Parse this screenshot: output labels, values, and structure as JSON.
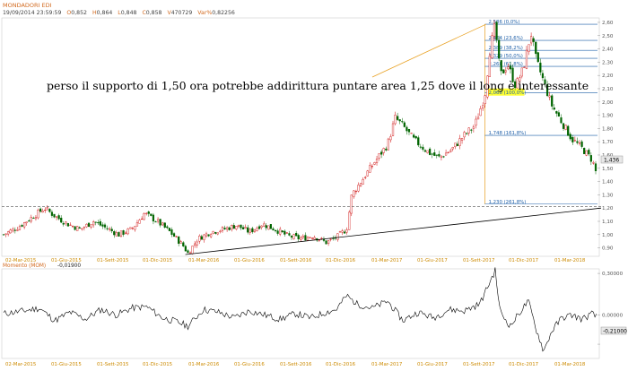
{
  "header": {
    "title": "MONDADORI EDI",
    "datetime": "19/09/2014  23:59:59",
    "open": "0,852",
    "high": "0,864",
    "low": "0,848",
    "close": "0,858",
    "volume": "470729",
    "var_pct": "0,82256"
  },
  "annotation": "perso il supporto di 1,50 ora potrebbe addirittura puntare area 1,25 dove il long è interessante",
  "last_price_label": "1,436",
  "momentum": {
    "title": "Momento (MOM)",
    "value": "-0,01900",
    "last_label": "-0,21000"
  },
  "chart_data": [
    {
      "type": "candlestick",
      "title": "MONDADORI EDI",
      "x_tick_labels": [
        "02-Mar-2015",
        "01-Giu-2015",
        "01-Sett-2015",
        "01-Dic-2015",
        "01-Mar-2016",
        "01-Giu-2016",
        "01-Sett-2016",
        "01-Dic-2016",
        "01-Mar-2017",
        "01-Giu-2017",
        "01-Sett-2017",
        "01-Dic-2017",
        "01-Mar-2018"
      ],
      "y_ticks": [
        0.9,
        1.0,
        1.1,
        1.2,
        1.3,
        1.4,
        1.5,
        1.6,
        1.7,
        1.8,
        1.9,
        2.0,
        2.1,
        2.2,
        2.3,
        2.4,
        2.5,
        2.6
      ],
      "y_tick_labels": [
        "0,90",
        "1,00",
        "1,10",
        "1,20",
        "1,30",
        "1,40",
        "1,50",
        "1,60",
        "1,70",
        "1,80",
        "1,90",
        "2,00",
        "2,10",
        "2,20",
        "2,30",
        "2,40",
        "2,50",
        "2,60"
      ],
      "ylim": [
        0.85,
        2.62
      ],
      "close_path": [
        {
          "x": 0,
          "y": 1.0
        },
        {
          "x": 6,
          "y": 1.06
        },
        {
          "x": 11,
          "y": 1.13
        },
        {
          "x": 16,
          "y": 1.2
        },
        {
          "x": 20,
          "y": 1.14
        },
        {
          "x": 25,
          "y": 1.08
        },
        {
          "x": 30,
          "y": 1.04
        },
        {
          "x": 35,
          "y": 1.1
        },
        {
          "x": 40,
          "y": 1.05
        },
        {
          "x": 45,
          "y": 1.0
        },
        {
          "x": 50,
          "y": 1.04
        },
        {
          "x": 55,
          "y": 1.16
        },
        {
          "x": 60,
          "y": 1.1
        },
        {
          "x": 65,
          "y": 1.02
        },
        {
          "x": 70,
          "y": 0.92
        },
        {
          "x": 72,
          "y": 0.86
        },
        {
          "x": 76,
          "y": 0.97
        },
        {
          "x": 81,
          "y": 1.02
        },
        {
          "x": 86,
          "y": 1.04
        },
        {
          "x": 91,
          "y": 1.07
        },
        {
          "x": 96,
          "y": 1.02
        },
        {
          "x": 101,
          "y": 1.08
        },
        {
          "x": 106,
          "y": 1.04
        },
        {
          "x": 111,
          "y": 0.99
        },
        {
          "x": 116,
          "y": 0.97
        },
        {
          "x": 121,
          "y": 0.99
        },
        {
          "x": 126,
          "y": 0.94
        },
        {
          "x": 130,
          "y": 0.98
        },
        {
          "x": 134,
          "y": 1.04
        },
        {
          "x": 136,
          "y": 1.3
        },
        {
          "x": 140,
          "y": 1.41
        },
        {
          "x": 145,
          "y": 1.55
        },
        {
          "x": 150,
          "y": 1.68
        },
        {
          "x": 153,
          "y": 1.88
        },
        {
          "x": 156,
          "y": 1.82
        },
        {
          "x": 160,
          "y": 1.72
        },
        {
          "x": 166,
          "y": 1.62
        },
        {
          "x": 170,
          "y": 1.58
        },
        {
          "x": 175,
          "y": 1.64
        },
        {
          "x": 180,
          "y": 1.75
        },
        {
          "x": 184,
          "y": 1.82
        },
        {
          "x": 188,
          "y": 2.05
        },
        {
          "x": 190,
          "y": 2.4
        },
        {
          "x": 192,
          "y": 2.58
        },
        {
          "x": 194,
          "y": 2.2
        },
        {
          "x": 197,
          "y": 2.28
        },
        {
          "x": 200,
          "y": 2.12
        },
        {
          "x": 203,
          "y": 2.25
        },
        {
          "x": 206,
          "y": 2.52
        },
        {
          "x": 208,
          "y": 2.32
        },
        {
          "x": 211,
          "y": 2.15
        },
        {
          "x": 214,
          "y": 1.98
        },
        {
          "x": 218,
          "y": 1.85
        },
        {
          "x": 222,
          "y": 1.72
        },
        {
          "x": 226,
          "y": 1.65
        },
        {
          "x": 230,
          "y": 1.56
        },
        {
          "x": 232,
          "y": 1.43
        }
      ],
      "x_max": 232,
      "fibonacci": [
        {
          "level": 2.586,
          "label": "2,586 (0,0%)"
        },
        {
          "level": 2.464,
          "label": "2,464 (23,6%)"
        },
        {
          "level": 2.389,
          "label": "2,389 (38,2%)"
        },
        {
          "level": 2.329,
          "label": "2,329 (50,0%)"
        },
        {
          "level": 2.268,
          "label": "2,268 (61,8%)"
        },
        {
          "level": 2.068,
          "label": "2,068 (100,0%)"
        },
        {
          "level": 1.748,
          "label": "1,748 (161,8%)"
        },
        {
          "level": 1.23,
          "label": "1,230 (261,8%)"
        }
      ],
      "support_level": 1.21,
      "colors": {
        "up": "#cc0000",
        "down": "#006400",
        "fib": "#1e5fa8",
        "fib_box": "#e8a020",
        "trend": "#000000"
      }
    },
    {
      "type": "line",
      "title": "Momento (MOM)",
      "y_ticks": [
        0.3,
        0.0,
        -0.21
      ],
      "y_tick_labels": [
        "0,30000",
        "0,00000",
        "-0,21000"
      ],
      "ylim": [
        -0.3,
        0.32
      ],
      "x_tick_labels": [
        "02-Mar-2015",
        "01-Giu-2015",
        "01-Sett-2015",
        "01-Dic-2015",
        "01-Mar-2016",
        "01-Giu-2016",
        "01-Sett-2016",
        "01-Dic-2016",
        "01-Mar-2017",
        "01-Giu-2017",
        "01-Sett-2017",
        "01-Dic-2017",
        "01-Mar-2018"
      ],
      "values_path": [
        {
          "x": 0,
          "y": 0.01
        },
        {
          "x": 8,
          "y": 0.03
        },
        {
          "x": 14,
          "y": 0.05
        },
        {
          "x": 20,
          "y": -0.04
        },
        {
          "x": 26,
          "y": 0.02
        },
        {
          "x": 32,
          "y": -0.03
        },
        {
          "x": 38,
          "y": 0.04
        },
        {
          "x": 44,
          "y": 0.0
        },
        {
          "x": 50,
          "y": 0.05
        },
        {
          "x": 56,
          "y": 0.06
        },
        {
          "x": 62,
          "y": -0.02
        },
        {
          "x": 68,
          "y": -0.05
        },
        {
          "x": 72,
          "y": -0.08
        },
        {
          "x": 78,
          "y": 0.04
        },
        {
          "x": 84,
          "y": 0.02
        },
        {
          "x": 90,
          "y": -0.02
        },
        {
          "x": 96,
          "y": 0.03
        },
        {
          "x": 102,
          "y": 0.0
        },
        {
          "x": 108,
          "y": -0.03
        },
        {
          "x": 114,
          "y": 0.01
        },
        {
          "x": 120,
          "y": -0.02
        },
        {
          "x": 126,
          "y": 0.02
        },
        {
          "x": 130,
          "y": 0.04
        },
        {
          "x": 134,
          "y": 0.14
        },
        {
          "x": 138,
          "y": 0.08
        },
        {
          "x": 144,
          "y": 0.05
        },
        {
          "x": 150,
          "y": 0.1
        },
        {
          "x": 156,
          "y": -0.04
        },
        {
          "x": 162,
          "y": 0.02
        },
        {
          "x": 168,
          "y": -0.02
        },
        {
          "x": 174,
          "y": 0.04
        },
        {
          "x": 180,
          "y": 0.03
        },
        {
          "x": 186,
          "y": 0.08
        },
        {
          "x": 190,
          "y": 0.24
        },
        {
          "x": 192,
          "y": 0.32
        },
        {
          "x": 194,
          "y": 0.02
        },
        {
          "x": 198,
          "y": -0.08
        },
        {
          "x": 202,
          "y": 0.03
        },
        {
          "x": 205,
          "y": 0.1
        },
        {
          "x": 208,
          "y": -0.1
        },
        {
          "x": 211,
          "y": -0.26
        },
        {
          "x": 214,
          "y": -0.12
        },
        {
          "x": 218,
          "y": -0.02
        },
        {
          "x": 222,
          "y": 0.0
        },
        {
          "x": 226,
          "y": -0.03
        },
        {
          "x": 230,
          "y": 0.01
        },
        {
          "x": 232,
          "y": -0.02
        }
      ],
      "x_max": 232
    }
  ]
}
